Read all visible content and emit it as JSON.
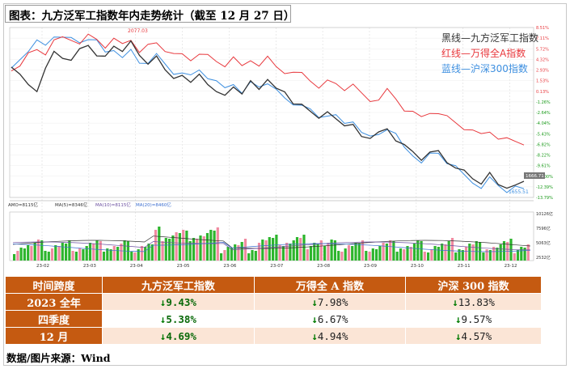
{
  "title": "图表：九方泛军工指数年内走势统计（截至 12 月 27 日）",
  "source": "数据/图片来源：Wind",
  "legend": [
    {
      "text": "黑线—九方泛军工指数",
      "color": "#333333"
    },
    {
      "text": "红线—万得全A指数",
      "color": "#e8383d"
    },
    {
      "text": "蓝线—沪深300指数",
      "color": "#3d8fe0"
    }
  ],
  "chart_labels": {
    "max_marker": "2077.03",
    "min_marker": "1655.51",
    "amo_label": "AMO",
    "amo_value": "AMO=8115亿",
    "ma5_label": "MA(5)=8346亿",
    "ma10_label": "MA(10)=8115亿",
    "ma20_label": "MA(20)=8460亿"
  },
  "chart_data": {
    "type": "line",
    "x_ticks": [
      "23-02",
      "23-03",
      "23-04",
      "23-05",
      "23-06",
      "23-07",
      "23-08",
      "23-09",
      "23-10",
      "23-11",
      "23-12"
    ],
    "right_axis_pct": [
      "8.51%",
      "7.11%",
      "5.72%",
      "4.32%",
      "2.93%",
      "1.53%",
      "0.13%",
      "-1.26%",
      "-2.64%",
      "-4.04%",
      "-5.43%",
      "-6.82%",
      "-8.22%",
      "-9.61%",
      "-11.00%",
      "-12.39%",
      "-13.79%"
    ],
    "volume_axis": [
      "10126亿",
      "7596亿",
      "5063亿",
      "2532亿"
    ],
    "current_value_label": "1666.71",
    "series": [
      {
        "name": "黑线—九方泛军工指数",
        "color": "#333333",
        "values": [
          2000,
          1985,
          1960,
          1945,
          2000,
          2055,
          2040,
          2020,
          2060,
          2075,
          2050,
          2035,
          2070,
          2060,
          2077,
          2040,
          2020,
          2050,
          1995,
          1975,
          1990,
          1955,
          1985,
          1960,
          1945,
          1920,
          1950,
          1935,
          1960,
          1940,
          1975,
          1955,
          1930,
          1900,
          1905,
          1870,
          1855,
          1880,
          1865,
          1830,
          1840,
          1810,
          1790,
          1815,
          1830,
          1800,
          1775,
          1760,
          1740,
          1750,
          1760,
          1730,
          1720,
          1700,
          1680,
          1670,
          1690,
          1660,
          1655,
          1670,
          1667
        ]
      },
      {
        "name": "红线—万得全A指数",
        "color": "#e8383d",
        "values": [
          2000,
          2020,
          2045,
          2060,
          2050,
          2080,
          2095,
          2090,
          2085,
          2100,
          2090,
          2070,
          2085,
          2075,
          2090,
          2060,
          2070,
          2080,
          2060,
          2040,
          2045,
          2030,
          2055,
          2040,
          2025,
          2015,
          2030,
          2010,
          2030,
          2020,
          2035,
          2010,
          1995,
          1985,
          1990,
          1970,
          1955,
          1965,
          1960,
          1945,
          1950,
          1930,
          1910,
          1920,
          1940,
          1915,
          1885,
          1870,
          1860,
          1875,
          1880,
          1860,
          1845,
          1830,
          1815,
          1810,
          1820,
          1805,
          1795,
          1790,
          1785
        ]
      },
      {
        "name": "蓝线—沪深300指数",
        "color": "#3d8fe0",
        "values": [
          2000,
          2030,
          2060,
          2080,
          2070,
          2100,
          2105,
          2090,
          2080,
          2095,
          2080,
          2050,
          2060,
          2045,
          2055,
          2020,
          2025,
          2040,
          2015,
          1990,
          2000,
          1980,
          2000,
          1980,
          1960,
          1945,
          1960,
          1940,
          1960,
          1950,
          1965,
          1935,
          1915,
          1900,
          1905,
          1880,
          1860,
          1870,
          1860,
          1840,
          1850,
          1825,
          1800,
          1810,
          1830,
          1805,
          1770,
          1750,
          1735,
          1750,
          1755,
          1730,
          1710,
          1690,
          1670,
          1660,
          1680,
          1660,
          1645,
          1650,
          1648
        ]
      }
    ]
  },
  "table": {
    "headers": [
      "时间跨度",
      "九方泛军工指数",
      "万得全 A 指数",
      "沪深 300 指数"
    ],
    "rows": [
      {
        "label": "2023 全年",
        "values": [
          "9.43%",
          "7.98%",
          "13.83%"
        ]
      },
      {
        "label": "四季度",
        "values": [
          "5.38%",
          "6.67%",
          "9.57%"
        ]
      },
      {
        "label": "12 月",
        "values": [
          "4.69%",
          "4.94%",
          "4.57%"
        ]
      }
    ]
  }
}
